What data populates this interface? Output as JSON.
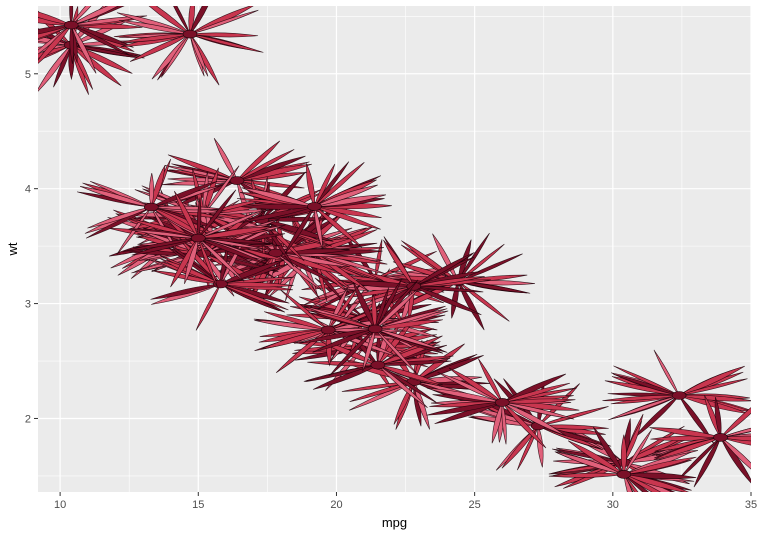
{
  "chart_data": {
    "type": "scatter",
    "title": "",
    "xlabel": "mpg",
    "ylabel": "wt",
    "xlim": [
      9.2,
      35.0
    ],
    "ylim": [
      1.36,
      5.59
    ],
    "x_ticks": [
      10,
      15,
      20,
      25,
      30,
      35
    ],
    "x_tick_labels": [
      "10",
      "15",
      "20",
      "25",
      "30",
      "35"
    ],
    "y_ticks": [
      2,
      3,
      4,
      5
    ],
    "y_tick_labels": [
      "2",
      "3",
      "4",
      "5"
    ],
    "grid": true,
    "legend": "none",
    "marker": "red-feathery-plant-image",
    "colors": {
      "panel_bg": "#ebebeb",
      "grid": "#ffffff",
      "marker_fill": "#c8364f",
      "marker_light": "#e0607a",
      "marker_dark": "#7a1028",
      "marker_outline": "#1a0008"
    },
    "series": [
      {
        "x": [
          21.0,
          21.0,
          22.8,
          21.4,
          18.7,
          18.1,
          14.3,
          24.4,
          22.8,
          19.2,
          17.8,
          16.4,
          17.3,
          15.2,
          10.4,
          10.4,
          14.7,
          32.4,
          30.4,
          33.9,
          21.5,
          15.5,
          15.2,
          13.3,
          19.2,
          27.3,
          26.0,
          30.4,
          15.8,
          19.7,
          15.0,
          21.4
        ],
        "y": [
          2.62,
          2.875,
          2.32,
          3.215,
          3.44,
          3.46,
          3.57,
          3.19,
          3.15,
          3.44,
          3.44,
          4.07,
          3.73,
          3.78,
          5.25,
          5.424,
          5.345,
          2.2,
          1.615,
          1.835,
          2.465,
          3.52,
          3.435,
          3.84,
          3.845,
          1.935,
          2.14,
          1.513,
          3.17,
          2.77,
          3.57,
          2.78
        ]
      }
    ]
  }
}
